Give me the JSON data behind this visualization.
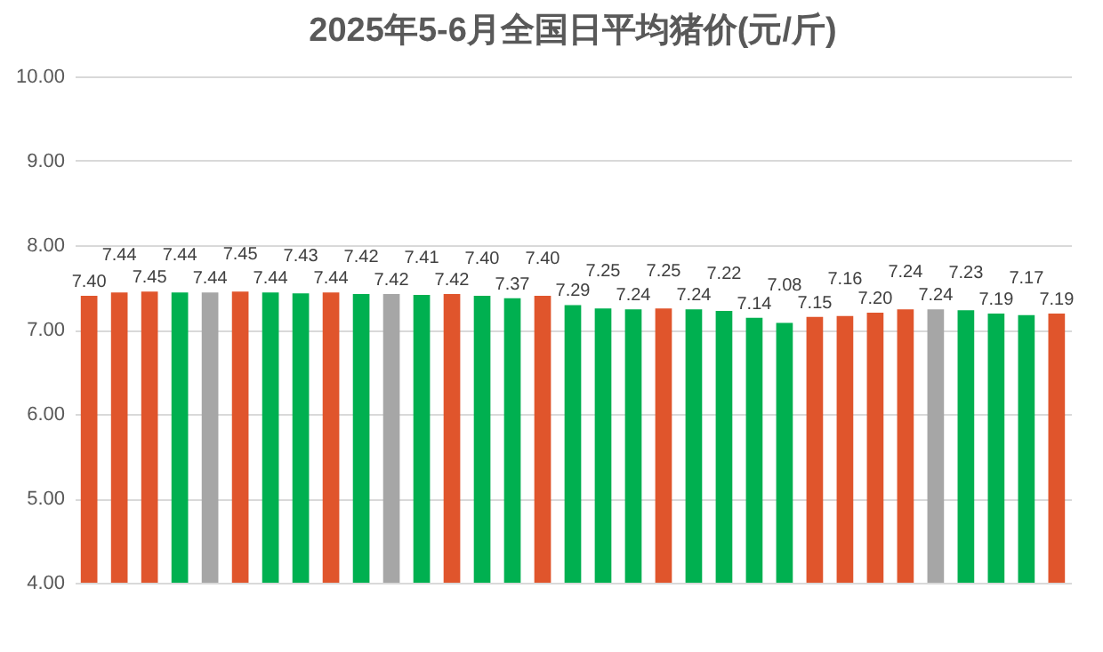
{
  "chart_data": {
    "type": "bar",
    "title": "2025年5-6月全国日平均猪价(元/斤)",
    "categories": [
      null,
      null,
      null,
      null,
      null,
      null,
      null,
      null,
      null,
      null,
      null,
      null,
      null,
      null,
      null,
      null,
      null,
      null,
      null,
      null,
      null,
      null,
      null,
      null,
      null,
      null,
      null,
      null,
      null,
      null,
      null,
      null,
      null
    ],
    "values": [
      7.4,
      7.44,
      7.45,
      7.44,
      7.44,
      7.45,
      7.44,
      7.43,
      7.44,
      7.42,
      7.42,
      7.41,
      7.42,
      7.4,
      7.37,
      7.4,
      7.29,
      7.25,
      7.24,
      7.25,
      7.24,
      7.22,
      7.14,
      7.08,
      7.15,
      7.16,
      7.2,
      7.24,
      7.24,
      7.23,
      7.19,
      7.17,
      7.19
    ],
    "value_labels": [
      "7.40",
      "7.44",
      "7.45",
      "7.44",
      "7.44",
      "7.45",
      "7.44",
      "7.43",
      "7.44",
      "7.42",
      "7.42",
      "7.41",
      "7.42",
      "7.40",
      "7.37",
      "7.40",
      "7.29",
      "7.25",
      "7.24",
      "7.25",
      "7.24",
      "7.22",
      "7.14",
      "7.08",
      "7.15",
      "7.16",
      "7.20",
      "7.24",
      "7.24",
      "7.23",
      "7.19",
      "7.17",
      "7.19"
    ],
    "colors": [
      "#e0552c",
      "#e0552c",
      "#e0552c",
      "#00b050",
      "#a6a6a6",
      "#e0552c",
      "#00b050",
      "#00b050",
      "#e0552c",
      "#00b050",
      "#a6a6a6",
      "#00b050",
      "#e0552c",
      "#00b050",
      "#00b050",
      "#e0552c",
      "#00b050",
      "#00b050",
      "#00b050",
      "#e0552c",
      "#00b050",
      "#00b050",
      "#00b050",
      "#00b050",
      "#e0552c",
      "#e0552c",
      "#e0552c",
      "#e0552c",
      "#a6a6a6",
      "#00b050",
      "#00b050",
      "#00b050",
      "#e0552c"
    ],
    "ylim": [
      4,
      10
    ],
    "yticks": [
      {
        "value": 4,
        "label": "4.00"
      },
      {
        "value": 5,
        "label": "5.00"
      },
      {
        "value": 6,
        "label": "6.00"
      },
      {
        "value": 7,
        "label": "7.00"
      },
      {
        "value": 8,
        "label": "8.00"
      },
      {
        "value": 9,
        "label": "9.00"
      },
      {
        "value": 10,
        "label": "10.00"
      }
    ],
    "grid": "y",
    "tick_labels": "y"
  }
}
